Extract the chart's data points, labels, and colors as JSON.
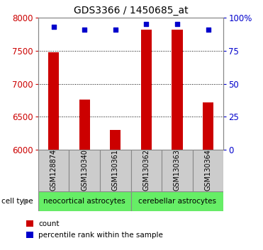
{
  "title": "GDS3366 / 1450685_at",
  "samples": [
    "GSM128874",
    "GSM130340",
    "GSM130361",
    "GSM130362",
    "GSM130363",
    "GSM130364"
  ],
  "counts": [
    7470,
    6760,
    6300,
    7820,
    7820,
    6720
  ],
  "percentiles": [
    93,
    91,
    91,
    95,
    95,
    91
  ],
  "y_min": 6000,
  "y_max": 8000,
  "y_ticks": [
    6000,
    6500,
    7000,
    7500,
    8000
  ],
  "y2_ticks": [
    0,
    25,
    50,
    75,
    100
  ],
  "bar_color": "#cc0000",
  "dot_color": "#0000cc",
  "group1_label": "neocortical astrocytes",
  "group2_label": "cerebellar astrocytes",
  "group1_color": "#66ee66",
  "group2_color": "#66ee66",
  "group1_indices": [
    0,
    1,
    2
  ],
  "group2_indices": [
    3,
    4,
    5
  ],
  "cell_type_label": "cell type",
  "legend_count_label": "count",
  "legend_pct_label": "percentile rank within the sample",
  "tick_label_color_left": "#cc0000",
  "tick_label_color_right": "#0000cc",
  "xlabel_bg_color": "#cccccc",
  "bar_width": 0.35
}
